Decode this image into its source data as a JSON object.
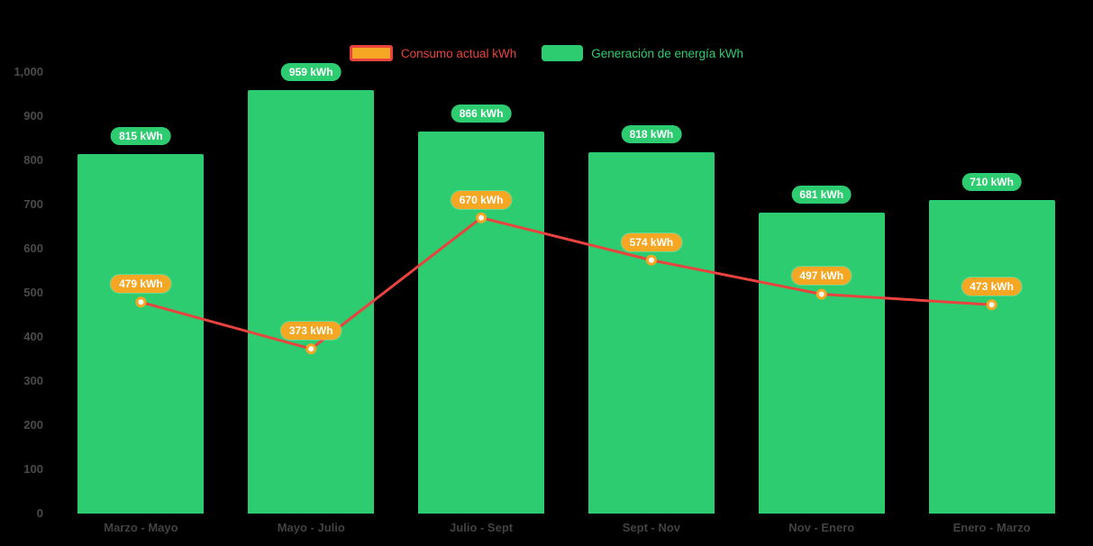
{
  "chart_data": {
    "type": "bar",
    "title": "",
    "unit": "kWh",
    "categories": [
      "Marzo - Mayo",
      "Mayo - Julio",
      "Julio - Sept",
      "Sept - Nov",
      "Nov - Enero",
      "Enero - Marzo"
    ],
    "series": [
      {
        "name": "Consumo actual kWh",
        "type": "line",
        "values": [
          479,
          373,
          670,
          574,
          497,
          473
        ],
        "labels": [
          "479 kWh",
          "373 kWh",
          "670 kWh",
          "574 kWh",
          "497 kWh",
          "473 kWh"
        ],
        "color": "#e8433e",
        "marker_color": "#f5a623",
        "label_bg": "#f5a623"
      },
      {
        "name": "Generación de energía kWh",
        "type": "bar",
        "values": [
          815,
          959,
          866,
          818,
          681,
          710
        ],
        "labels": [
          "815 kWh",
          "959 kWh",
          "866 kWh",
          "818 kWh",
          "681 kWh",
          "710 kWh"
        ],
        "color": "#2ecc71",
        "label_bg": "#2ecc71"
      }
    ],
    "ylim": [
      0,
      1000
    ],
    "ytick_step": 100,
    "ytick_labels": [
      "0",
      "100",
      "200",
      "300",
      "400",
      "500",
      "600",
      "700",
      "800",
      "900",
      "1,000"
    ],
    "legend_position": "top",
    "grid": false,
    "background": "#000000"
  }
}
